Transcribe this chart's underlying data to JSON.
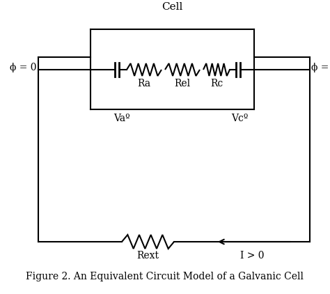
{
  "title": "Cell",
  "caption": "Figure 2. An Equivalent Circuit Model of a Galvanic Cell",
  "bg_color": "#ffffff",
  "line_color": "#000000",
  "labels": {
    "phi_left": "ϕ = 0",
    "phi_right": "ϕ = V",
    "Va": "Vaº",
    "Vc": "Vcº",
    "Ra": "Ra",
    "Rel": "Rel",
    "Rc": "Rc",
    "Rext": "Rext",
    "current": "I > 0"
  },
  "font_size": 10,
  "caption_font_size": 10
}
